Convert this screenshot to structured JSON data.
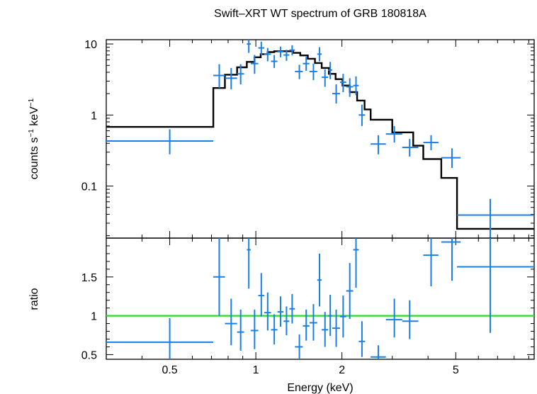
{
  "chart_data": {
    "type": "scatter",
    "title": "Swift–XRT WT spectrum of GRB 180818A",
    "xlabel": "Energy (keV)",
    "xscale": "log",
    "xlim": [
      0.3,
      9.4
    ],
    "xticks": [
      {
        "v": 0.5,
        "label": "0.5"
      },
      {
        "v": 1,
        "label": "1"
      },
      {
        "v": 2,
        "label": "2"
      },
      {
        "v": 5,
        "label": "5"
      }
    ],
    "colors": {
      "data": "#1a7fe6",
      "model": "#000000",
      "unity": "#22e01f",
      "axes": "#000000"
    },
    "top": {
      "ylabel_main": "counts s",
      "ylabel_sup1": "−1",
      "ylabel_mid": " keV",
      "ylabel_sup2": "−1",
      "yscale": "log",
      "ylim": [
        0.0185,
        11.5
      ],
      "yticks": [
        {
          "v": 0.1,
          "label": "0.1"
        },
        {
          "v": 1,
          "label": "1"
        },
        {
          "v": 10,
          "label": "10"
        }
      ],
      "points": [
        {
          "x": 0.5,
          "xlo": 0.3,
          "xhi": 0.71,
          "y": 0.43,
          "ylo": 0.28,
          "yhi": 0.63
        },
        {
          "x": 0.745,
          "xlo": 0.71,
          "xhi": 0.78,
          "y": 3.6,
          "ylo": 2.4,
          "yhi": 5.2
        },
        {
          "x": 0.82,
          "xlo": 0.78,
          "xhi": 0.86,
          "y": 3.3,
          "ylo": 2.3,
          "yhi": 4.6
        },
        {
          "x": 0.885,
          "xlo": 0.86,
          "xhi": 0.91,
          "y": 3.8,
          "ylo": 2.7,
          "yhi": 5.2
        },
        {
          "x": 0.945,
          "xlo": 0.93,
          "xhi": 0.96,
          "y": 10.0,
          "ylo": 7.5,
          "yhi": 13
        },
        {
          "x": 0.99,
          "xlo": 0.96,
          "xhi": 1.02,
          "y": 5.3,
          "ylo": 3.8,
          "yhi": 7.0
        },
        {
          "x": 1.045,
          "xlo": 1.02,
          "xhi": 1.07,
          "y": 8.8,
          "ylo": 7.0,
          "yhi": 10.8
        },
        {
          "x": 1.1,
          "xlo": 1.07,
          "xhi": 1.13,
          "y": 7.2,
          "ylo": 5.7,
          "yhi": 8.8
        },
        {
          "x": 1.16,
          "xlo": 1.13,
          "xhi": 1.19,
          "y": 5.7,
          "ylo": 4.6,
          "yhi": 7.0
        },
        {
          "x": 1.22,
          "xlo": 1.19,
          "xhi": 1.25,
          "y": 7.8,
          "ylo": 6.5,
          "yhi": 9.2
        },
        {
          "x": 1.28,
          "xlo": 1.25,
          "xhi": 1.31,
          "y": 7.0,
          "ylo": 5.8,
          "yhi": 8.3
        },
        {
          "x": 1.34,
          "xlo": 1.31,
          "xhi": 1.37,
          "y": 8.2,
          "ylo": 6.9,
          "yhi": 9.6
        },
        {
          "x": 1.42,
          "xlo": 1.37,
          "xhi": 1.46,
          "y": 4.1,
          "ylo": 3.2,
          "yhi": 5.1
        },
        {
          "x": 1.5,
          "xlo": 1.46,
          "xhi": 1.54,
          "y": 5.3,
          "ylo": 4.2,
          "yhi": 6.6
        },
        {
          "x": 1.59,
          "xlo": 1.54,
          "xhi": 1.64,
          "y": 4.1,
          "ylo": 3.1,
          "yhi": 5.3
        },
        {
          "x": 1.67,
          "xlo": 1.64,
          "xhi": 1.7,
          "y": 7.2,
          "ylo": 5.7,
          "yhi": 9.0
        },
        {
          "x": 1.745,
          "xlo": 1.7,
          "xhi": 1.79,
          "y": 3.4,
          "ylo": 2.5,
          "yhi": 4.4
        },
        {
          "x": 1.82,
          "xlo": 1.79,
          "xhi": 1.85,
          "y": 4.3,
          "ylo": 3.2,
          "yhi": 5.6
        },
        {
          "x": 1.91,
          "xlo": 1.85,
          "xhi": 1.97,
          "y": 2.0,
          "ylo": 1.45,
          "yhi": 2.7
        },
        {
          "x": 2.02,
          "xlo": 1.97,
          "xhi": 2.07,
          "y": 2.9,
          "ylo": 2.1,
          "yhi": 3.8
        },
        {
          "x": 2.13,
          "xlo": 2.07,
          "xhi": 2.19,
          "y": 2.5,
          "ylo": 1.8,
          "yhi": 3.3
        },
        {
          "x": 2.24,
          "xlo": 2.19,
          "xhi": 2.29,
          "y": 2.6,
          "ylo": 1.9,
          "yhi": 3.5
        },
        {
          "x": 2.35,
          "xlo": 2.29,
          "xhi": 2.41,
          "y": 1.0,
          "ylo": 0.7,
          "yhi": 1.4
        },
        {
          "x": 2.68,
          "xlo": 2.52,
          "xhi": 2.85,
          "y": 0.39,
          "ylo": 0.28,
          "yhi": 0.52
        },
        {
          "x": 3.05,
          "xlo": 2.85,
          "xhi": 3.25,
          "y": 0.54,
          "ylo": 0.41,
          "yhi": 0.7
        },
        {
          "x": 3.45,
          "xlo": 3.25,
          "xhi": 3.7,
          "y": 0.35,
          "ylo": 0.26,
          "yhi": 0.46
        },
        {
          "x": 4.1,
          "xlo": 3.85,
          "xhi": 4.35,
          "y": 0.41,
          "ylo": 0.32,
          "yhi": 0.52
        },
        {
          "x": 4.85,
          "xlo": 4.45,
          "xhi": 5.2,
          "y": 0.25,
          "ylo": 0.18,
          "yhi": 0.34
        },
        {
          "x": 6.6,
          "xlo": 5.05,
          "xhi": 9.4,
          "y": 0.039,
          "ylo": 0.0185,
          "yhi": 0.066
        }
      ],
      "model_steps": [
        {
          "x0": 0.3,
          "x1": 0.71,
          "y": 0.68
        },
        {
          "x0": 0.71,
          "x1": 0.78,
          "y": 2.4
        },
        {
          "x0": 0.78,
          "x1": 0.86,
          "y": 3.7
        },
        {
          "x0": 0.86,
          "x1": 0.93,
          "y": 4.7
        },
        {
          "x0": 0.93,
          "x1": 0.99,
          "y": 5.6
        },
        {
          "x0": 0.99,
          "x1": 1.04,
          "y": 6.5
        },
        {
          "x0": 1.04,
          "x1": 1.1,
          "y": 7.2
        },
        {
          "x0": 1.1,
          "x1": 1.16,
          "y": 7.7
        },
        {
          "x0": 1.16,
          "x1": 1.35,
          "y": 7.9
        },
        {
          "x0": 1.35,
          "x1": 1.43,
          "y": 7.5
        },
        {
          "x0": 1.43,
          "x1": 1.52,
          "y": 6.9
        },
        {
          "x0": 1.52,
          "x1": 1.61,
          "y": 6.2
        },
        {
          "x0": 1.61,
          "x1": 1.7,
          "y": 5.4
        },
        {
          "x0": 1.7,
          "x1": 1.8,
          "y": 4.6
        },
        {
          "x0": 1.8,
          "x1": 1.9,
          "y": 3.8
        },
        {
          "x0": 1.9,
          "x1": 2.01,
          "y": 3.2
        },
        {
          "x0": 2.01,
          "x1": 2.13,
          "y": 2.6
        },
        {
          "x0": 2.13,
          "x1": 2.26,
          "y": 2.1
        },
        {
          "x0": 2.26,
          "x1": 2.4,
          "y": 1.6
        },
        {
          "x0": 2.4,
          "x1": 2.52,
          "y": 1.2
        },
        {
          "x0": 2.52,
          "x1": 3.0,
          "y": 0.86
        },
        {
          "x0": 3.0,
          "x1": 3.55,
          "y": 0.57
        },
        {
          "x0": 3.55,
          "x1": 3.85,
          "y": 0.37
        },
        {
          "x0": 3.85,
          "x1": 4.45,
          "y": 0.24
        },
        {
          "x0": 4.45,
          "x1": 5.05,
          "y": 0.13
        },
        {
          "x0": 5.05,
          "x1": 9.4,
          "y": 0.025
        }
      ]
    },
    "bottom": {
      "ylabel": "ratio",
      "yscale": "linear",
      "ylim": [
        0.44,
        2.0
      ],
      "yticks": [
        {
          "v": 0.5,
          "label": "0.5"
        },
        {
          "v": 1,
          "label": "1"
        },
        {
          "v": 1.5,
          "label": "1.5"
        }
      ],
      "unity": 1.0,
      "points": [
        {
          "x": 0.5,
          "xlo": 0.3,
          "xhi": 0.71,
          "y": 0.66,
          "ylo": 0.44,
          "yhi": 0.97
        },
        {
          "x": 0.745,
          "xlo": 0.71,
          "xhi": 0.78,
          "y": 1.5,
          "ylo": 1.0,
          "yhi": 2.0
        },
        {
          "x": 0.82,
          "xlo": 0.78,
          "xhi": 0.86,
          "y": 0.9,
          "ylo": 0.62,
          "yhi": 1.22
        },
        {
          "x": 0.885,
          "xlo": 0.86,
          "xhi": 0.91,
          "y": 0.79,
          "ylo": 0.55,
          "yhi": 1.08
        },
        {
          "x": 0.945,
          "xlo": 0.93,
          "xhi": 0.96,
          "y": 1.85,
          "ylo": 1.35,
          "yhi": 2.0
        },
        {
          "x": 0.99,
          "xlo": 0.96,
          "xhi": 1.02,
          "y": 0.81,
          "ylo": 0.57,
          "yhi": 1.08
        },
        {
          "x": 1.045,
          "xlo": 1.02,
          "xhi": 1.07,
          "y": 1.26,
          "ylo": 0.99,
          "yhi": 1.55
        },
        {
          "x": 1.1,
          "xlo": 1.07,
          "xhi": 1.13,
          "y": 1.04,
          "ylo": 0.81,
          "yhi": 1.3
        },
        {
          "x": 1.16,
          "xlo": 1.13,
          "xhi": 1.19,
          "y": 0.82,
          "ylo": 0.63,
          "yhi": 1.02
        },
        {
          "x": 1.22,
          "xlo": 1.19,
          "xhi": 1.25,
          "y": 1.05,
          "ylo": 0.86,
          "yhi": 1.25
        },
        {
          "x": 1.28,
          "xlo": 1.25,
          "xhi": 1.31,
          "y": 0.93,
          "ylo": 0.75,
          "yhi": 1.12
        },
        {
          "x": 1.34,
          "xlo": 1.31,
          "xhi": 1.37,
          "y": 1.09,
          "ylo": 0.9,
          "yhi": 1.28
        },
        {
          "x": 1.42,
          "xlo": 1.37,
          "xhi": 1.46,
          "y": 0.6,
          "ylo": 0.45,
          "yhi": 0.76
        },
        {
          "x": 1.5,
          "xlo": 1.46,
          "xhi": 1.54,
          "y": 0.87,
          "ylo": 0.68,
          "yhi": 1.08
        },
        {
          "x": 1.59,
          "xlo": 1.54,
          "xhi": 1.64,
          "y": 0.91,
          "ylo": 0.68,
          "yhi": 1.15
        },
        {
          "x": 1.67,
          "xlo": 1.64,
          "xhi": 1.7,
          "y": 1.46,
          "ylo": 1.12,
          "yhi": 1.8
        },
        {
          "x": 1.745,
          "xlo": 1.7,
          "xhi": 1.79,
          "y": 0.82,
          "ylo": 0.6,
          "yhi": 1.05
        },
        {
          "x": 1.82,
          "xlo": 1.79,
          "xhi": 1.85,
          "y": 1.0,
          "ylo": 0.74,
          "yhi": 1.27
        },
        {
          "x": 1.91,
          "xlo": 1.85,
          "xhi": 1.97,
          "y": 0.84,
          "ylo": 0.6,
          "yhi": 1.08
        },
        {
          "x": 2.02,
          "xlo": 1.97,
          "xhi": 2.07,
          "y": 0.99,
          "ylo": 0.72,
          "yhi": 1.26
        },
        {
          "x": 2.13,
          "xlo": 2.07,
          "xhi": 2.19,
          "y": 1.32,
          "ylo": 0.96,
          "yhi": 1.68
        },
        {
          "x": 2.24,
          "xlo": 2.19,
          "xhi": 2.29,
          "y": 1.85,
          "ylo": 1.36,
          "yhi": 2.0
        },
        {
          "x": 2.35,
          "xlo": 2.29,
          "xhi": 2.41,
          "y": 0.67,
          "ylo": 0.47,
          "yhi": 0.93
        },
        {
          "x": 2.68,
          "xlo": 2.52,
          "xhi": 2.85,
          "y": 0.47,
          "ylo": 0.44,
          "yhi": 0.62
        },
        {
          "x": 3.05,
          "xlo": 2.85,
          "xhi": 3.25,
          "y": 0.95,
          "ylo": 0.72,
          "yhi": 1.22
        },
        {
          "x": 3.45,
          "xlo": 3.25,
          "xhi": 3.7,
          "y": 0.93,
          "ylo": 0.7,
          "yhi": 1.2
        },
        {
          "x": 4.1,
          "xlo": 3.85,
          "xhi": 4.35,
          "y": 1.78,
          "ylo": 1.38,
          "yhi": 2.0
        },
        {
          "x": 4.85,
          "xlo": 4.45,
          "xhi": 5.2,
          "y": 1.95,
          "ylo": 1.45,
          "yhi": 2.0
        },
        {
          "x": 6.6,
          "xlo": 5.05,
          "xhi": 9.4,
          "y": 1.63,
          "ylo": 0.78,
          "yhi": 2.0
        }
      ]
    }
  }
}
